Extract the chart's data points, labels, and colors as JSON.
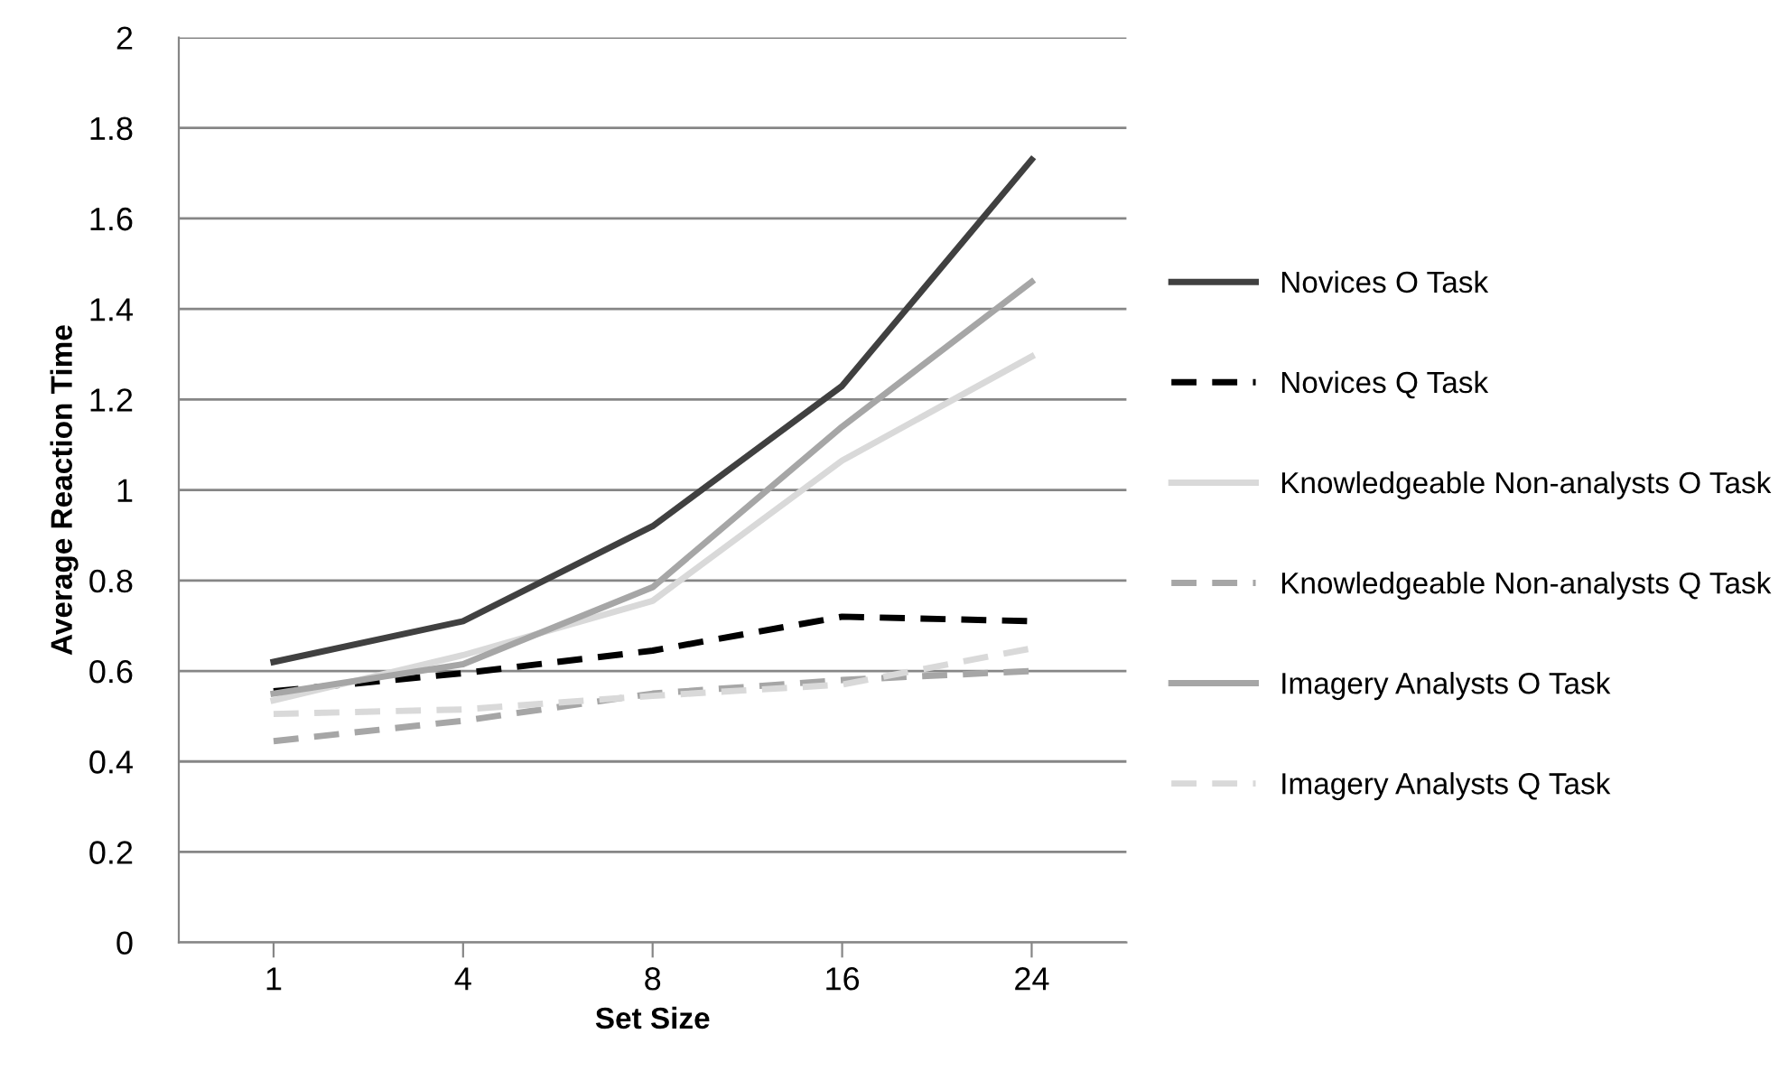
{
  "chart_data": {
    "type": "line",
    "xlabel": "Set Size",
    "ylabel": "Average Reaction Time",
    "categories": [
      "1",
      "4",
      "8",
      "16",
      "24"
    ],
    "series": [
      {
        "name": "Novices O Task",
        "color": "#404040",
        "line_style": "solid",
        "values": [
          0.62,
          0.71,
          0.92,
          1.23,
          1.73
        ]
      },
      {
        "name": "Novices Q Task",
        "color": "#000000",
        "line_style": "dashed",
        "values": [
          0.555,
          0.595,
          0.645,
          0.72,
          0.71
        ]
      },
      {
        "name": "Knowledgeable Non-analysts O Task",
        "color": "#d9d9d9",
        "line_style": "solid",
        "values": [
          0.535,
          0.635,
          0.755,
          1.065,
          1.295
        ]
      },
      {
        "name": "Knowledgeable Non-analysts Q Task",
        "color": "#a6a6a6",
        "line_style": "dashed",
        "values": [
          0.445,
          0.49,
          0.55,
          0.58,
          0.6
        ]
      },
      {
        "name": "Imagery Analysts O Task",
        "color": "#a6a6a6",
        "line_style": "solid",
        "values": [
          0.55,
          0.615,
          0.785,
          1.14,
          1.46
        ]
      },
      {
        "name": "Imagery Analysts Q Task",
        "color": "#d9d9d9",
        "line_style": "dashed",
        "values": [
          0.505,
          0.515,
          0.545,
          0.57,
          0.65
        ]
      }
    ],
    "ylim": [
      0,
      2
    ],
    "yticks": [
      0,
      0.2,
      0.4,
      0.6,
      0.8,
      1,
      1.2,
      1.4,
      1.6,
      1.8,
      2
    ],
    "grid": "y",
    "legend": "right",
    "marker": "none"
  }
}
